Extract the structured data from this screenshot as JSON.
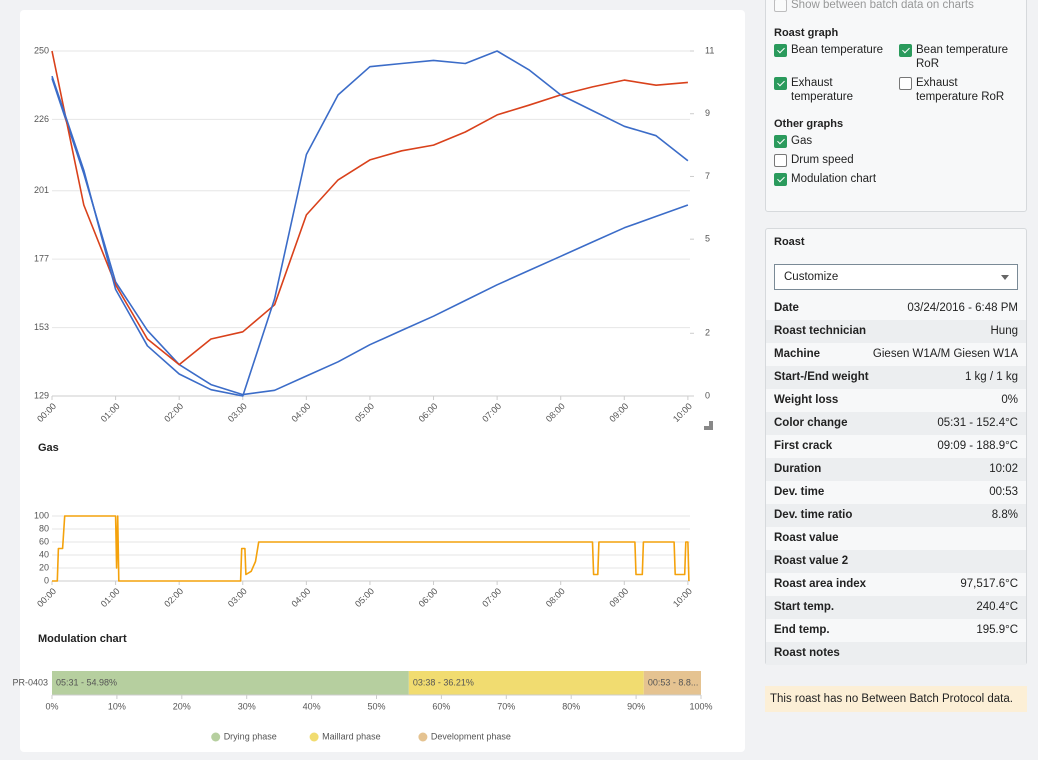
{
  "chart_data": [
    {
      "type": "line",
      "x": [
        0,
        30,
        60,
        90,
        120,
        150,
        180,
        210,
        240,
        270,
        300,
        330,
        360,
        390,
        420,
        450,
        480,
        510,
        540,
        570,
        600
      ],
      "xlim": [
        0,
        602
      ],
      "xticks": [
        {
          "value": 0,
          "label": "00:00"
        },
        {
          "value": 60,
          "label": "01:00"
        },
        {
          "value": 120,
          "label": "02:00"
        },
        {
          "value": 180,
          "label": "03:00"
        },
        {
          "value": 240,
          "label": "04:00"
        },
        {
          "value": 300,
          "label": "05:00"
        },
        {
          "value": 360,
          "label": "06:00"
        },
        {
          "value": 420,
          "label": "07:00"
        },
        {
          "value": 480,
          "label": "08:00"
        },
        {
          "value": 540,
          "label": "09:00"
        },
        {
          "value": 600,
          "label": "10:00"
        }
      ],
      "ylim": [
        129,
        250
      ],
      "yticks": [
        250,
        226,
        201,
        177,
        153,
        129
      ],
      "y2lim": [
        0,
        11
      ],
      "y2ticks": [
        11,
        9,
        7,
        5,
        2,
        0
      ],
      "grid": true,
      "series": [
        {
          "color": "#3b6cc8",
          "values": [
            240.4,
            207,
            169,
            152,
            140,
            133,
            129.5,
            131,
            136,
            141,
            147,
            152,
            157,
            162.5,
            168,
            173,
            178,
            183,
            188,
            192,
            196
          ]
        },
        {
          "color": "#d9411b",
          "values": [
            250,
            196,
            168,
            149,
            140,
            149,
            151.5,
            161,
            192.5,
            204.8,
            211.8,
            215,
            217,
            221.6,
            227.6,
            231,
            234.6,
            237.4,
            239.8,
            238,
            239
          ]
        },
        {
          "color": "#3b6cc8",
          "axis": "y2",
          "values": [
            10.2,
            7.2,
            3.4,
            1.6,
            0.7,
            0.2,
            0,
            3.1,
            7.7,
            9.6,
            10.5,
            10.6,
            10.7,
            10.6,
            11,
            10.4,
            9.6,
            9.1,
            8.6,
            8.3,
            7.5
          ]
        }
      ]
    },
    {
      "type": "line",
      "title": "Gas",
      "x": [
        0,
        5,
        6,
        10,
        12,
        60,
        61,
        62,
        63,
        178,
        179,
        182,
        183,
        188,
        192,
        195,
        510,
        511,
        515,
        516,
        550,
        551,
        557,
        558,
        587,
        588,
        597,
        598,
        600,
        601
      ],
      "xlim": [
        0,
        602
      ],
      "xticks": [
        {
          "value": 0,
          "label": "00:00"
        },
        {
          "value": 60,
          "label": "01:00"
        },
        {
          "value": 120,
          "label": "02:00"
        },
        {
          "value": 180,
          "label": "03:00"
        },
        {
          "value": 240,
          "label": "04:00"
        },
        {
          "value": 300,
          "label": "05:00"
        },
        {
          "value": 360,
          "label": "06:00"
        },
        {
          "value": 420,
          "label": "07:00"
        },
        {
          "value": 480,
          "label": "08:00"
        },
        {
          "value": 540,
          "label": "09:00"
        },
        {
          "value": 600,
          "label": "10:00"
        }
      ],
      "ylim": [
        0,
        100
      ],
      "yticks": [
        100,
        80,
        60,
        40,
        20,
        0
      ],
      "grid": true,
      "series": [
        {
          "color": "#f4a20c",
          "values": [
            0,
            0,
            50,
            50,
            100,
            100,
            20,
            100,
            0,
            0,
            50,
            50,
            10,
            15,
            30,
            60,
            60,
            10,
            10,
            60,
            60,
            10,
            10,
            60,
            60,
            10,
            10,
            60,
            60,
            0
          ]
        }
      ]
    },
    {
      "type": "hbar-stacked",
      "title": "Modulation chart",
      "categories": [
        "PR-0403"
      ],
      "xlim": [
        0,
        100
      ],
      "xticks": [
        {
          "value": 0,
          "label": "0%"
        },
        {
          "value": 10,
          "label": "10%"
        },
        {
          "value": 20,
          "label": "20%"
        },
        {
          "value": 30,
          "label": "30%"
        },
        {
          "value": 40,
          "label": "40%"
        },
        {
          "value": 50,
          "label": "50%"
        },
        {
          "value": 60,
          "label": "60%"
        },
        {
          "value": 70,
          "label": "70%"
        },
        {
          "value": 80,
          "label": "80%"
        },
        {
          "value": 90,
          "label": "90%"
        },
        {
          "value": 100,
          "label": "100%"
        }
      ],
      "legend": "bottom",
      "series": [
        {
          "name": "Drying phase",
          "color": "#b6cf9f",
          "values": [
            54.98
          ],
          "value_labels": [
            "05:31 - 54.98%"
          ]
        },
        {
          "name": "Maillard phase",
          "color": "#f1dc70",
          "values": [
            36.21
          ],
          "value_labels": [
            "03:38 - 36.21%"
          ]
        },
        {
          "name": "Development phase",
          "color": "#e5c391",
          "values": [
            8.81
          ],
          "value_labels": [
            "00:53 - 8.8..."
          ]
        }
      ]
    }
  ],
  "settings": {
    "show_between_batch": {
      "label": "Show between batch data on charts",
      "checked": false
    },
    "groups": [
      {
        "title": "Roast graph",
        "columns": 2,
        "options": [
          {
            "label": "Bean temperature",
            "checked": true
          },
          {
            "label": "Bean temperature RoR",
            "checked": true
          },
          {
            "label": "Exhaust temperature",
            "checked": true
          },
          {
            "label": "Exhaust temperature RoR",
            "checked": false
          }
        ]
      },
      {
        "title": "Other graphs",
        "columns": 1,
        "options": [
          {
            "label": "Gas",
            "checked": true
          },
          {
            "label": "Drum speed",
            "checked": false
          },
          {
            "label": "Modulation chart",
            "checked": true
          }
        ]
      }
    ]
  },
  "roast": {
    "title": "Roast",
    "select": "Customize",
    "rows": [
      {
        "label": "Date",
        "value": "03/24/2016 - 6:48 PM"
      },
      {
        "label": "Roast technician",
        "value": "Hung"
      },
      {
        "label": "Machine",
        "value": "Giesen W1A/M Giesen W1A"
      },
      {
        "label": "Start-/End weight",
        "value": "1 kg / 1 kg"
      },
      {
        "label": "Weight loss",
        "value": "0%"
      },
      {
        "label": "Color change",
        "value": "05:31 - 152.4°C"
      },
      {
        "label": "First crack",
        "value": "09:09 - 188.9°C"
      },
      {
        "label": "Duration",
        "value": "10:02"
      },
      {
        "label": "Dev. time",
        "value": "00:53"
      },
      {
        "label": "Dev. time ratio",
        "value": "8.8%"
      },
      {
        "label": "Roast value"
      },
      {
        "label": "Roast value 2"
      },
      {
        "label": "Roast area index",
        "value": "97,517.6°C"
      },
      {
        "label": "Start temp.",
        "value": "240.4°C"
      },
      {
        "label": "End temp.",
        "value": "195.9°C"
      },
      {
        "label": "Roast notes"
      }
    ]
  },
  "notice": "This roast has no Between Batch Protocol data."
}
